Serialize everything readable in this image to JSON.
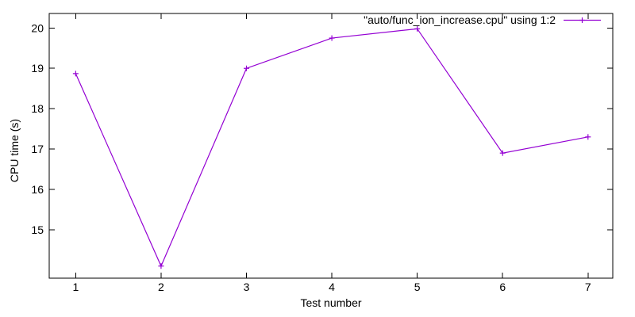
{
  "chart_data": {
    "type": "line",
    "title": "",
    "series": [
      {
        "name": "\"auto/func_ion_increase.cpu\" using 1:2",
        "x": [
          1,
          2,
          3,
          4,
          5,
          6,
          7
        ],
        "y": [
          18.87,
          14.1,
          19.0,
          19.75,
          19.98,
          16.9,
          17.3
        ],
        "color": "#9400d3",
        "marker": "plus",
        "style": "linespoints"
      }
    ],
    "xlabel": "Test number",
    "ylabel": "CPU time (s)",
    "xticks": [
      1,
      2,
      3,
      4,
      5,
      6,
      7
    ],
    "yticks": [
      15,
      16,
      17,
      18,
      19,
      20
    ],
    "xlim": [
      0.69,
      7.29
    ],
    "ylim": [
      13.8,
      20.36
    ],
    "grid": false,
    "legend_position": "top-right-inside",
    "background_color": "#ffffff",
    "axis_color": "#000000"
  }
}
